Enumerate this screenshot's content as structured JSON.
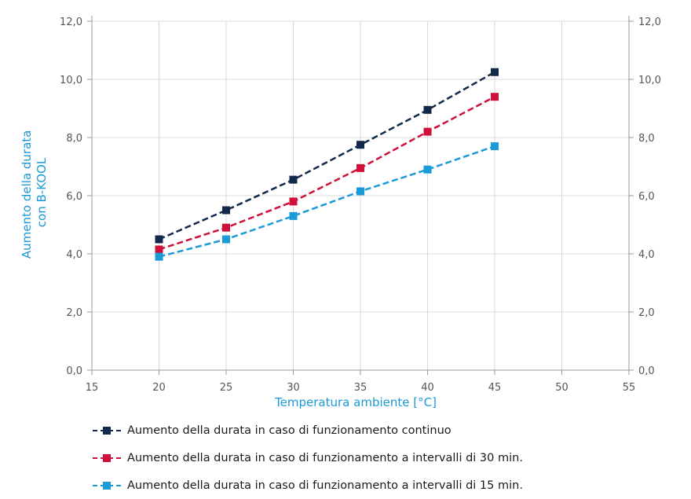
{
  "chart_data": {
    "type": "line",
    "xlabel": "Temperatura ambiente [°C]",
    "ylabel_line1": "Aumento della durata",
    "ylabel_line2": "con B-KOOL",
    "xlim": [
      15,
      55
    ],
    "ylim": [
      0,
      12
    ],
    "x_ticks": [
      15,
      20,
      25,
      30,
      35,
      40,
      45,
      50,
      55
    ],
    "y_ticks": [
      0,
      2,
      4,
      6,
      8,
      10,
      12
    ],
    "y_tick_labels": [
      "0,0",
      "2,0",
      "4,0",
      "6,0",
      "8,0",
      "10,0",
      "12,0"
    ],
    "grid": true,
    "secondary_y_axis": true,
    "legend_position": "bottom",
    "x": [
      20,
      25,
      30,
      35,
      40,
      45
    ],
    "series": [
      {
        "name": "Aumento della durata in caso di funzionamento continuo",
        "color": "#13294b",
        "values": [
          4.5,
          5.5,
          6.55,
          7.75,
          8.95,
          10.25
        ]
      },
      {
        "name": "Aumento della durata in caso di funzionamento a intervalli di 30 min.",
        "color": "#d0103a",
        "values": [
          4.15,
          4.9,
          5.8,
          6.95,
          8.2,
          9.4
        ]
      },
      {
        "name": "Aumento della durata in caso di funzionamento a intervalli di 15 min.",
        "color": "#1a9ad6",
        "values": [
          3.9,
          4.5,
          5.3,
          6.15,
          6.9,
          7.7
        ]
      }
    ],
    "axis_title_color": "#1a9ad6"
  }
}
